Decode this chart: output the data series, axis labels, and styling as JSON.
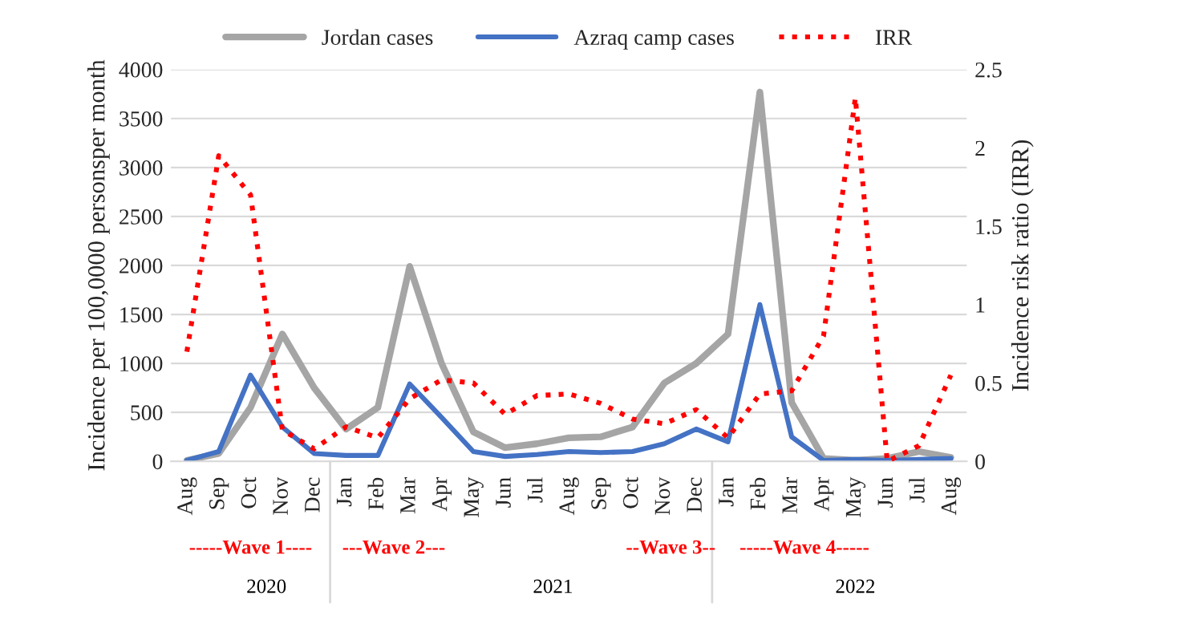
{
  "chart_data": {
    "type": "line",
    "categories": [
      "Aug",
      "Sep",
      "Oct",
      "Nov",
      "Dec",
      "Jan",
      "Feb",
      "Mar",
      "Apr",
      "May",
      "Jun",
      "Jul",
      "Aug",
      "Sep",
      "Oct",
      "Nov",
      "Dec",
      "Jan",
      "Feb",
      "Mar",
      "Apr",
      "May",
      "Jun",
      "Jul",
      "Aug"
    ],
    "series": [
      {
        "name": "Jordan cases",
        "color": "#a5a5a5",
        "line_style": "solid",
        "values": [
          10,
          80,
          550,
          1300,
          750,
          330,
          550,
          1990,
          1000,
          300,
          140,
          180,
          240,
          250,
          350,
          800,
          1000,
          1300,
          3770,
          600,
          30,
          10,
          30,
          100,
          40
        ]
      },
      {
        "name": "Azraq camp cases",
        "color": "#4472c4",
        "line_style": "solid",
        "values": [
          10,
          100,
          880,
          350,
          80,
          60,
          60,
          790,
          450,
          100,
          50,
          70,
          100,
          90,
          100,
          180,
          330,
          200,
          1600,
          250,
          10,
          20,
          10,
          20,
          30
        ]
      },
      {
        "name": "IRR",
        "color": "#ff0000",
        "line_style": "dotted",
        "axis": "y2",
        "values": [
          0.7,
          1.95,
          1.7,
          0.2,
          0.08,
          0.22,
          0.15,
          0.4,
          0.52,
          0.5,
          0.3,
          0.42,
          0.43,
          0.37,
          0.27,
          0.24,
          0.33,
          0.15,
          0.43,
          0.45,
          0.8,
          2.32,
          0.0,
          0.1,
          0.55
        ]
      }
    ],
    "ylabel": "Incidence per 100,0000 personsper month",
    "y2label": "Incidence risk ratio (IRR)",
    "ylim": [
      0,
      4000
    ],
    "yticks": [
      0,
      500,
      1000,
      1500,
      2000,
      2500,
      3000,
      3500,
      4000
    ],
    "y2lim": [
      0,
      2.5
    ],
    "y2ticks": [
      0,
      0.5,
      1,
      1.5,
      2,
      2.5
    ],
    "grid": "y",
    "legend": "top",
    "annotations": [
      "-----Wave 1----",
      "---Wave 2---",
      "--Wave 3--",
      "-----Wave 4-----",
      "2020",
      "2021",
      "2022"
    ]
  }
}
